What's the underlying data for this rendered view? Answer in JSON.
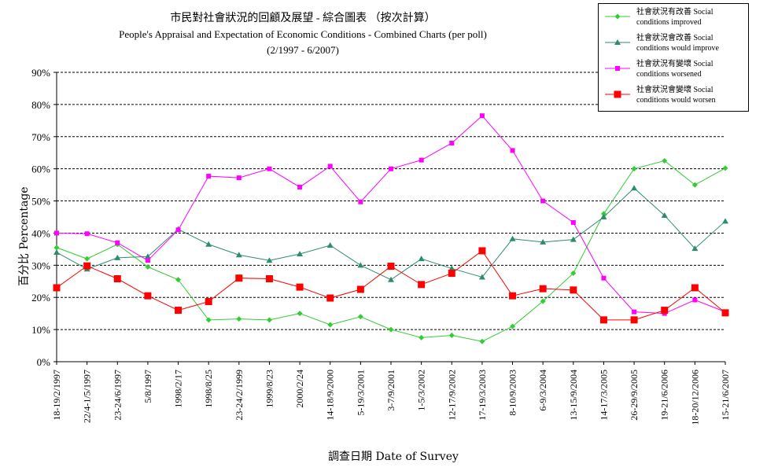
{
  "chart_data": {
    "type": "line",
    "title": "市民對社會狀況的回顧及展望 - 綜合圖表 （按次計算）",
    "subtitle": "People's Appraisal and Expectation of Economic Conditions - Combined Charts  (per poll)",
    "date_range": "(2/1997 - 6/2007)",
    "xlabel": "調查日期 Date of Survey",
    "ylabel": "百分比 Percentage",
    "ylim": [
      0,
      90
    ],
    "yticks": [
      "0%",
      "10%",
      "20%",
      "30%",
      "40%",
      "50%",
      "60%",
      "70%",
      "80%",
      "90%"
    ],
    "grid": "horizontal dashed",
    "legend_position": "top-right",
    "categories": [
      "18-19/2/1997",
      "22/4-1/5/1997",
      "23-24/6/1997",
      "5/8/1997",
      "1998/2/17",
      "1998/8/25",
      "23-24/2/1999",
      "1999/8/23",
      "2000/2/24",
      "14-18/9/2000",
      "5-19/3/2001",
      "3-7/9/2001",
      "1-5/3/2002",
      "12-17/9/2002",
      "17-19/3/2003",
      "8-10/9/2003",
      "6-9/3/2004",
      "13-15/9/2004",
      "14-17/3/2005",
      "26-29/9/2005",
      "19-21/6/2006",
      "18-20/12/2006",
      "15-21/6/2007"
    ],
    "series": [
      {
        "name": "社會狀況有改善 Social conditions improved",
        "color": "#33cc33",
        "marker": "diamond",
        "values": [
          35.5,
          32,
          36.5,
          29.5,
          25.5,
          13,
          13.3,
          13,
          15,
          11.5,
          14,
          10,
          7.5,
          8.2,
          6.3,
          11,
          18.8,
          27.5,
          46,
          60,
          62.5,
          55,
          60.2
        ]
      },
      {
        "name": "社會狀況會改善 Social conditions would improve",
        "color": "#2e8b6e",
        "marker": "triangle",
        "values": [
          34,
          28.8,
          32.3,
          32.7,
          41.2,
          36.5,
          33.2,
          31.5,
          33.5,
          36.2,
          30,
          25.5,
          32,
          29,
          26.3,
          38.2,
          37.2,
          38,
          45,
          54,
          45.5,
          35.2,
          43.7
        ]
      },
      {
        "name": "社會狀況有變壞 Social conditions worsened",
        "color": "#ff00ff",
        "marker": "square",
        "values": [
          40,
          39.8,
          37,
          31.5,
          41,
          57.7,
          57.2,
          60,
          54.3,
          60.8,
          49.7,
          60,
          62.7,
          68,
          76.5,
          65.7,
          50,
          43.3,
          26,
          15.5,
          15,
          19.2,
          15.5
        ]
      },
      {
        "name": "社會狀況會變壞 Social conditions would worsen",
        "color": "#ff0000",
        "marker": "bigsquare",
        "values": [
          23,
          29.8,
          25.8,
          20.5,
          16,
          18.7,
          26,
          25.8,
          23.2,
          19.8,
          22.5,
          29.7,
          24,
          27.5,
          34.5,
          20.5,
          22.7,
          22.3,
          13,
          13,
          16,
          23,
          15.2
        ]
      }
    ]
  },
  "legend": {
    "items": [
      {
        "line1": "社會狀況有改善 Social",
        "line2": "conditions improved"
      },
      {
        "line1": "社會狀況會改善 Social",
        "line2": "conditions would improve"
      },
      {
        "line1": "社會狀況有變壞 Social",
        "line2": "conditions worsened"
      },
      {
        "line1": "社會狀況會變壞 Social",
        "line2": "conditions would worsen"
      }
    ]
  }
}
